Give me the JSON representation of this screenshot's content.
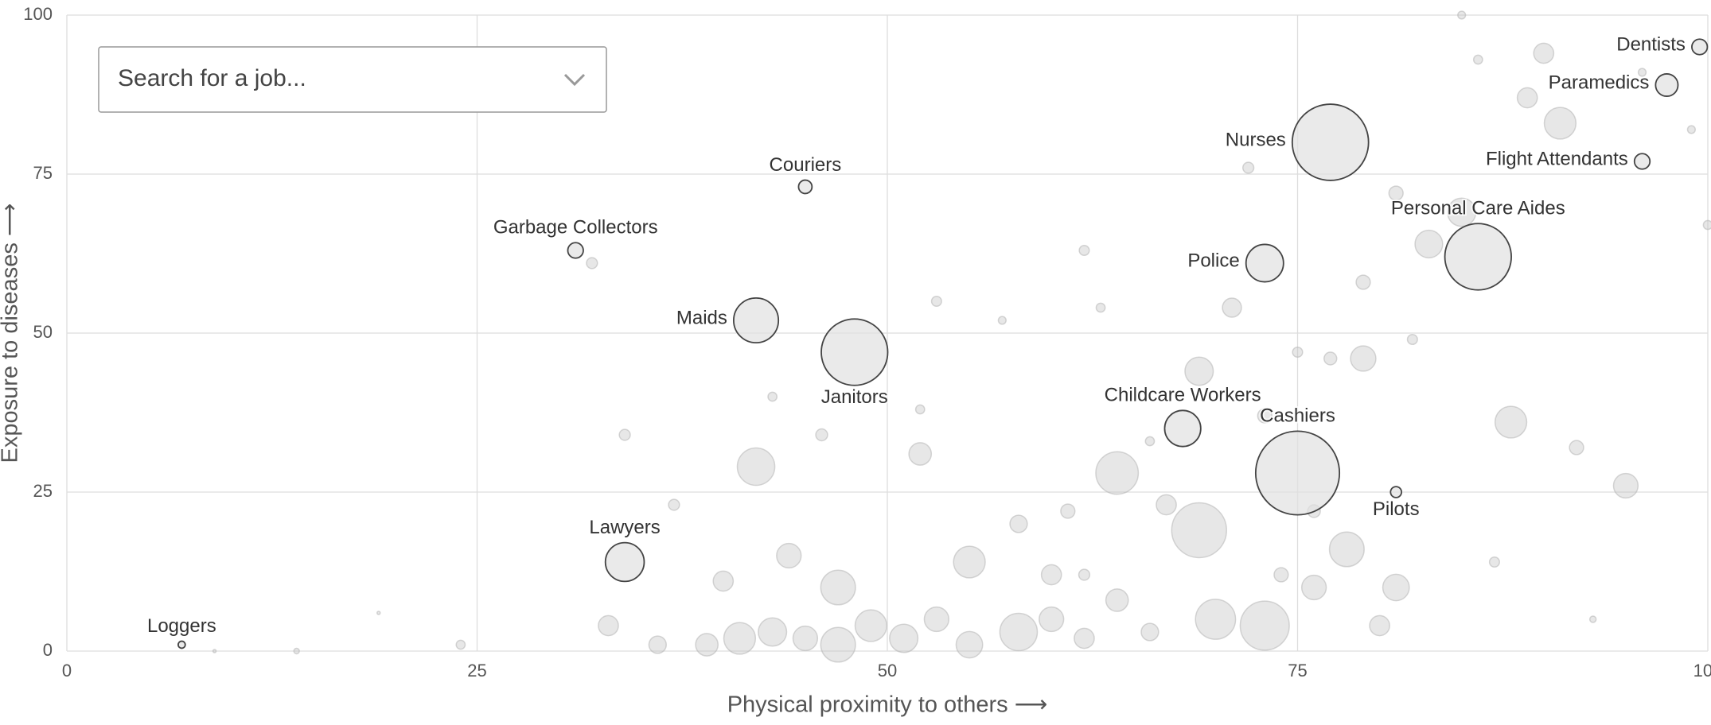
{
  "chart_data": {
    "type": "bubble",
    "xlabel": "Physical proximity to others ⟶",
    "ylabel": "Exposure to diseases ⟶",
    "xlim": [
      0,
      100
    ],
    "ylim": [
      0,
      100
    ],
    "xticks": [
      0,
      25,
      50,
      75,
      100
    ],
    "yticks": [
      0,
      25,
      50,
      75,
      100
    ],
    "grid": true,
    "search_placeholder": "Search for a job...",
    "labeled": {
      "names": [
        "Dentists",
        "Paramedics",
        "Flight Attendants",
        "Nurses",
        "Personal Care Aides",
        "Police",
        "Couriers",
        "Garbage Collectors",
        "Maids",
        "Janitors",
        "Childcare Workers",
        "Cashiers",
        "Pilots",
        "Lawyers",
        "Loggers"
      ],
      "x": [
        99.5,
        97.5,
        96,
        77,
        86,
        73,
        45,
        31,
        42,
        48,
        68,
        75,
        81,
        34,
        7
      ],
      "y": [
        95,
        89,
        77,
        80,
        62,
        61,
        73,
        63,
        52,
        47,
        35,
        28,
        25,
        14,
        1
      ],
      "size": [
        120,
        250,
        120,
        2900,
        2200,
        700,
        90,
        120,
        1000,
        2200,
        650,
        3500,
        60,
        750,
        25
      ]
    },
    "others": {
      "x": [
        24,
        14,
        9,
        19,
        33,
        36,
        39,
        41,
        43,
        45,
        47,
        49,
        51,
        53,
        55,
        58,
        60,
        62,
        64,
        66,
        69,
        70,
        73,
        76,
        78,
        80,
        81,
        40,
        42,
        47,
        44,
        52,
        55,
        58,
        60,
        64,
        67,
        69,
        71,
        73,
        75,
        77,
        79,
        79,
        83,
        85,
        88,
        91,
        90,
        89,
        95,
        92,
        81,
        82,
        62,
        63,
        72,
        53,
        57,
        34,
        37,
        32,
        46,
        61,
        66,
        87,
        93,
        99,
        100,
        86,
        85,
        96,
        52,
        43,
        62,
        74,
        76
      ],
      "y": [
        1,
        0,
        0,
        6,
        4,
        1,
        1,
        2,
        3,
        2,
        1,
        4,
        2,
        5,
        1,
        3,
        5,
        2,
        8,
        3,
        19,
        5,
        4,
        10,
        16,
        4,
        10,
        11,
        29,
        10,
        15,
        31,
        14,
        20,
        12,
        28,
        23,
        44,
        54,
        37,
        47,
        46,
        58,
        46,
        64,
        69,
        36,
        83,
        94,
        87,
        26,
        32,
        72,
        49,
        63,
        54,
        76,
        55,
        52,
        34,
        23,
        61,
        34,
        22,
        33,
        14,
        5,
        82,
        67,
        93,
        100,
        91,
        38,
        40,
        12,
        12,
        22
      ],
      "size": [
        40,
        15,
        5,
        5,
        200,
        150,
        250,
        500,
        400,
        300,
        600,
        500,
        400,
        300,
        350,
        700,
        300,
        200,
        250,
        150,
        1500,
        800,
        1200,
        300,
        600,
        200,
        350,
        200,
        700,
        600,
        300,
        250,
        500,
        150,
        200,
        900,
        200,
        400,
        180,
        100,
        50,
        80,
        100,
        320,
        380,
        400,
        500,
        500,
        200,
        200,
        300,
        100,
        100,
        50,
        50,
        40,
        60,
        50,
        30,
        60,
        60,
        60,
        70,
        100,
        40,
        50,
        20,
        30,
        40,
        40,
        30,
        30,
        40,
        40,
        60,
        100,
        80
      ]
    }
  }
}
